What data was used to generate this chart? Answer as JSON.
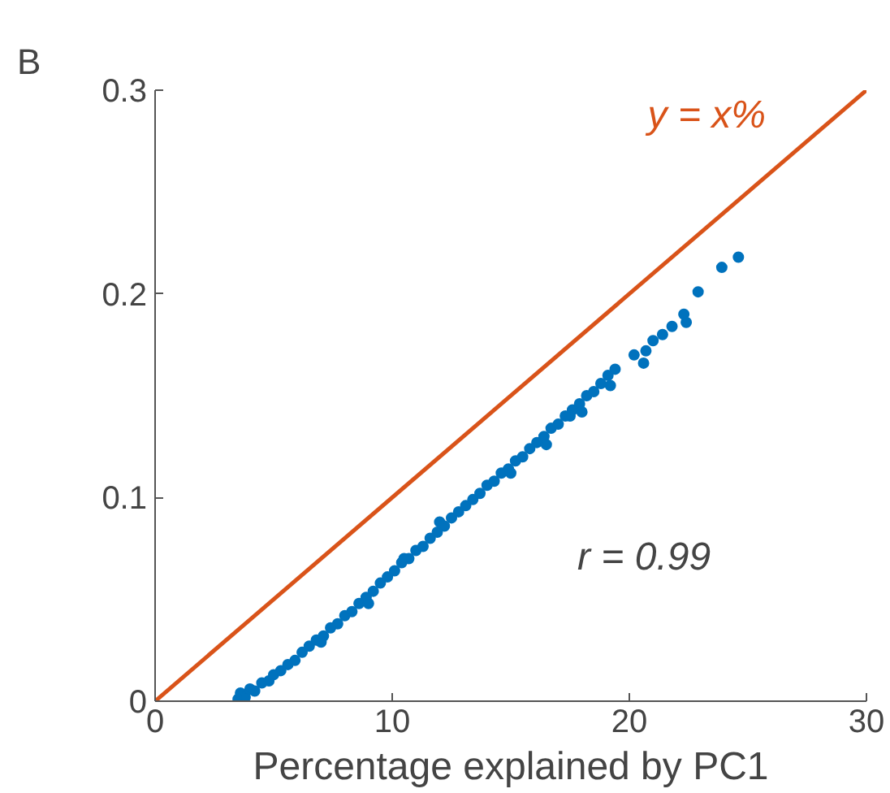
{
  "chart_data": {
    "type": "scatter",
    "title": "B",
    "xlabel": "Percentage explained by PC1",
    "xlim": [
      0,
      30
    ],
    "ylim": [
      0,
      0.3
    ],
    "xticks": [
      0,
      10,
      20,
      30
    ],
    "yticks": [
      0,
      0.1,
      0.2,
      0.3
    ],
    "grid": false,
    "annotations": [
      "r = 0.99"
    ],
    "series": [
      {
        "color": "#0072bd",
        "marker": "circle",
        "x": [
          3.5,
          3.6,
          3.8,
          4.0,
          4.2,
          4.5,
          4.8,
          5.0,
          5.3,
          5.6,
          5.9,
          6.2,
          6.5,
          6.8,
          7.1,
          7.4,
          7.7,
          8.0,
          8.3,
          8.6,
          8.9,
          9.2,
          9.5,
          9.8,
          10.1,
          10.4,
          10.7,
          11.0,
          11.3,
          11.6,
          11.9,
          12.2,
          12.5,
          12.8,
          13.1,
          13.4,
          13.7,
          14.0,
          14.3,
          14.6,
          14.9,
          15.2,
          15.5,
          15.8,
          16.1,
          16.4,
          16.7,
          17.0,
          17.3,
          17.6,
          17.9,
          18.2,
          18.5,
          18.8,
          19.1,
          19.4,
          19.2,
          20.2,
          20.7,
          20.6,
          21.0,
          21.4,
          21.8,
          22.3,
          22.4,
          22.9,
          23.9,
          24.6,
          9.0,
          12.0,
          15.0,
          16.5,
          17.5,
          18.0,
          7.0,
          10.5
        ],
        "values": [
          0.001,
          0.004,
          0.002,
          0.006,
          0.005,
          0.009,
          0.01,
          0.013,
          0.015,
          0.018,
          0.02,
          0.024,
          0.027,
          0.03,
          0.032,
          0.036,
          0.038,
          0.042,
          0.044,
          0.048,
          0.051,
          0.054,
          0.058,
          0.061,
          0.064,
          0.068,
          0.07,
          0.074,
          0.076,
          0.08,
          0.083,
          0.086,
          0.09,
          0.093,
          0.096,
          0.099,
          0.102,
          0.106,
          0.108,
          0.112,
          0.114,
          0.118,
          0.12,
          0.124,
          0.127,
          0.13,
          0.134,
          0.136,
          0.14,
          0.143,
          0.146,
          0.15,
          0.152,
          0.156,
          0.16,
          0.163,
          0.155,
          0.17,
          0.172,
          0.166,
          0.177,
          0.18,
          0.184,
          0.19,
          0.186,
          0.201,
          0.213,
          0.218,
          0.048,
          0.088,
          0.112,
          0.126,
          0.14,
          0.142,
          0.029,
          0.07
        ]
      },
      {
        "type": "line",
        "name": "y = x%",
        "color": "#d95319",
        "x": [
          0,
          30
        ],
        "values": [
          0,
          0.3
        ],
        "line_style": "solid",
        "marker": "none"
      }
    ]
  }
}
